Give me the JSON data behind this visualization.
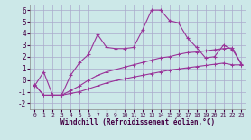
{
  "background_color": "#cce8e8",
  "grid_color": "#aaaacc",
  "line_color": "#993399",
  "xlim": [
    -0.5,
    23.5
  ],
  "ylim": [
    -2.5,
    6.5
  ],
  "yticks": [
    -2,
    -1,
    0,
    1,
    2,
    3,
    4,
    5,
    6
  ],
  "xticks": [
    0,
    1,
    2,
    3,
    4,
    5,
    6,
    7,
    8,
    9,
    10,
    11,
    12,
    13,
    14,
    15,
    16,
    17,
    18,
    19,
    20,
    21,
    22,
    23
  ],
  "xlabel": "Windchill (Refroidissement éolien,°C)",
  "series1_x": [
    0,
    1,
    2,
    3,
    4,
    5,
    6,
    7,
    8,
    9,
    10,
    11,
    12,
    13,
    14,
    15,
    16,
    17,
    18,
    19,
    20,
    21,
    22,
    23
  ],
  "series1_y": [
    -0.5,
    0.7,
    -1.3,
    -1.3,
    0.4,
    1.5,
    2.2,
    3.9,
    2.8,
    2.7,
    2.7,
    2.8,
    4.3,
    6.0,
    6.0,
    5.1,
    4.9,
    3.6,
    2.8,
    1.9,
    2.0,
    3.0,
    2.6,
    1.4
  ],
  "series2_x": [
    0,
    1,
    2,
    3,
    4,
    5,
    6,
    7,
    8,
    9,
    10,
    11,
    12,
    13,
    14,
    15,
    16,
    17,
    18,
    19,
    20,
    21,
    22,
    23
  ],
  "series2_y": [
    -0.4,
    -1.3,
    -1.3,
    -1.3,
    -0.9,
    -0.5,
    0.0,
    0.4,
    0.7,
    0.9,
    1.1,
    1.3,
    1.5,
    1.7,
    1.9,
    2.0,
    2.2,
    2.35,
    2.4,
    2.5,
    2.6,
    2.7,
    2.75,
    1.3
  ],
  "series3_x": [
    0,
    1,
    2,
    3,
    4,
    5,
    6,
    7,
    8,
    9,
    10,
    11,
    12,
    13,
    14,
    15,
    16,
    17,
    18,
    19,
    20,
    21,
    22,
    23
  ],
  "series3_y": [
    -0.4,
    -1.3,
    -1.3,
    -1.3,
    -1.15,
    -1.0,
    -0.75,
    -0.5,
    -0.25,
    -0.05,
    0.1,
    0.25,
    0.4,
    0.55,
    0.7,
    0.85,
    0.95,
    1.05,
    1.15,
    1.25,
    1.35,
    1.45,
    1.3,
    1.3
  ]
}
